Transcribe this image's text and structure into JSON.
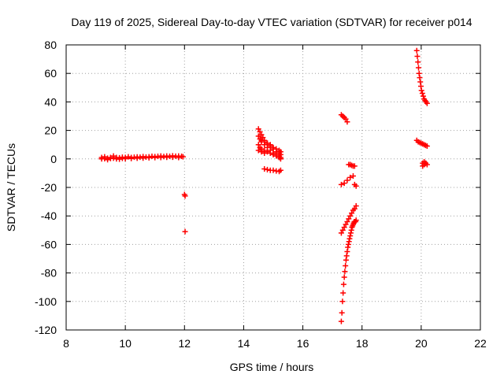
{
  "chart_data": {
    "type": "scatter",
    "title": "Day 119 of 2025, Sidereal Day-to-day VTEC variation (SDTVAR) for receiver p014",
    "xlabel": "GPS time / hours",
    "ylabel": "SDTVAR / TECUs",
    "xlim": [
      8,
      22
    ],
    "ylim": [
      -120,
      80
    ],
    "xticks": [
      8,
      10,
      12,
      14,
      16,
      18,
      20,
      22
    ],
    "yticks": [
      -120,
      -100,
      -80,
      -60,
      -40,
      -20,
      0,
      20,
      40,
      60,
      80
    ],
    "grid": true,
    "marker": "+",
    "marker_color": "#ff0000",
    "series": [
      {
        "name": "arc-1",
        "x": [
          9.2,
          9.3,
          9.4,
          9.5,
          9.6,
          9.7,
          9.8,
          9.9,
          10.0,
          10.1,
          10.2,
          10.3,
          10.4,
          10.5,
          10.6,
          10.7,
          10.8,
          10.9,
          11.0,
          11.1,
          11.2,
          11.3,
          11.4,
          11.5,
          11.6,
          11.7,
          11.8,
          11.9,
          11.95
        ],
        "y": [
          1,
          1.5,
          0.5,
          1,
          2,
          1,
          0.8,
          1.2,
          1,
          1.5,
          1,
          1.2,
          1.4,
          1.2,
          1.6,
          1.3,
          1.5,
          1.8,
          1.6,
          1.8,
          2,
          1.7,
          2,
          1.8,
          2.2,
          1.9,
          2,
          1.8,
          1.5
        ]
      },
      {
        "name": "arc-1b",
        "x": [
          9.2,
          9.3,
          9.4,
          9.5,
          9.6,
          9.7,
          9.8,
          9.9,
          10.0,
          10.2,
          10.4,
          10.6,
          10.8,
          11.0,
          11.2,
          11.4,
          11.6,
          11.8
        ],
        "y": [
          0,
          0.2,
          -0.5,
          0.3,
          0.5,
          0,
          -0.2,
          0.4,
          0.2,
          0.3,
          0.5,
          0.6,
          0.8,
          0.9,
          1,
          1.1,
          1.2,
          1
        ]
      },
      {
        "name": "arc-2",
        "x": [
          12.0,
          12.02
        ],
        "y": [
          -25,
          -26
        ]
      },
      {
        "name": "arc-3",
        "x": [
          12.02
        ],
        "y": [
          -51
        ]
      },
      {
        "name": "arc-4",
        "x": [
          14.5,
          14.55,
          14.6,
          14.65,
          14.7,
          14.8,
          14.9,
          15.0,
          15.1,
          15.2,
          15.25
        ],
        "y": [
          21,
          19,
          17,
          15,
          13,
          11,
          9,
          7,
          5,
          4,
          3
        ]
      },
      {
        "name": "arc-5",
        "x": [
          14.5,
          14.55,
          14.6,
          14.7,
          14.8,
          14.9,
          15.0,
          15.1,
          15.2,
          15.25
        ],
        "y": [
          16,
          14,
          12,
          10,
          8,
          6,
          4,
          3,
          2,
          1
        ]
      },
      {
        "name": "arc-6",
        "x": [
          14.5,
          14.55,
          14.6,
          14.7,
          14.8,
          14.9,
          15.0,
          15.1,
          15.2,
          15.25
        ],
        "y": [
          10,
          8,
          7,
          6,
          5,
          4,
          3,
          2,
          1,
          0
        ]
      },
      {
        "name": "arc-7",
        "x": [
          14.6,
          14.7,
          14.8,
          14.9,
          15.0,
          15.1,
          15.2,
          15.25
        ],
        "y": [
          13,
          12,
          11,
          10,
          8,
          7,
          6,
          5
        ]
      },
      {
        "name": "arc-8",
        "x": [
          14.5,
          14.6,
          14.7
        ],
        "y": [
          6,
          5,
          4
        ]
      },
      {
        "name": "arc-9",
        "x": [
          14.7,
          14.8,
          14.9,
          15.0,
          15.1,
          15.2,
          15.25
        ],
        "y": [
          -7,
          -7.5,
          -8,
          -8,
          -8.5,
          -8.8,
          -8
        ]
      },
      {
        "name": "arc-10",
        "x": [
          17.3,
          17.35,
          17.4,
          17.45,
          17.5
        ],
        "y": [
          31,
          30,
          29,
          28,
          26
        ]
      },
      {
        "name": "arc-11",
        "x": [
          17.55,
          17.6,
          17.65,
          17.7,
          17.75
        ],
        "y": [
          -4,
          -4,
          -4.5,
          -5,
          -5
        ]
      },
      {
        "name": "arc-12",
        "x": [
          17.3,
          17.4,
          17.5,
          17.6,
          17.7
        ],
        "y": [
          -18,
          -17,
          -15,
          -13,
          -12
        ]
      },
      {
        "name": "arc-13",
        "x": [
          17.75,
          17.8
        ],
        "y": [
          -18,
          -19
        ]
      },
      {
        "name": "arc-14",
        "x": [
          17.3,
          17.35,
          17.4,
          17.45,
          17.5,
          17.55,
          17.6,
          17.65,
          17.7,
          17.75,
          17.8
        ],
        "y": [
          -52,
          -50,
          -48,
          -46,
          -44,
          -42,
          -40,
          -38,
          -36,
          -35,
          -33
        ]
      },
      {
        "name": "arc-15",
        "x": [
          17.3,
          17.32,
          17.34,
          17.36,
          17.38,
          17.4,
          17.42,
          17.44,
          17.46,
          17.48,
          17.5,
          17.52,
          17.54,
          17.56,
          17.58,
          17.6,
          17.62,
          17.64,
          17.66,
          17.68,
          17.7,
          17.72,
          17.74,
          17.76,
          17.78,
          17.8
        ],
        "y": [
          -114,
          -108,
          -100,
          -94,
          -88,
          -83,
          -79,
          -75,
          -71,
          -68,
          -65,
          -62,
          -60,
          -58,
          -56,
          -54,
          -52,
          -50,
          -48,
          -47,
          -46,
          -45,
          -44,
          -44,
          -44,
          -43
        ]
      },
      {
        "name": "arc-16",
        "x": [
          19.85,
          19.87,
          19.89,
          19.91,
          19.93,
          19.95,
          19.97,
          19.99,
          20.01,
          20.04,
          20.07,
          20.1,
          20.13,
          20.16,
          20.2
        ],
        "y": [
          76,
          72,
          68,
          64,
          60,
          57,
          54,
          51,
          48,
          46,
          44,
          42,
          41,
          40,
          39
        ]
      },
      {
        "name": "arc-17",
        "x": [
          19.85,
          19.9,
          19.95,
          20.0,
          20.05,
          20.1,
          20.15,
          20.2
        ],
        "y": [
          13,
          12,
          11.5,
          11,
          10.5,
          10,
          9.5,
          9
        ]
      },
      {
        "name": "arc-18",
        "x": [
          20.05,
          20.1,
          20.15,
          20.2
        ],
        "y": [
          -3,
          -2,
          -3,
          -4
        ]
      },
      {
        "name": "arc-19",
        "x": [
          20.05,
          20.1,
          20.15
        ],
        "y": [
          -5,
          -4,
          -3
        ]
      }
    ]
  }
}
